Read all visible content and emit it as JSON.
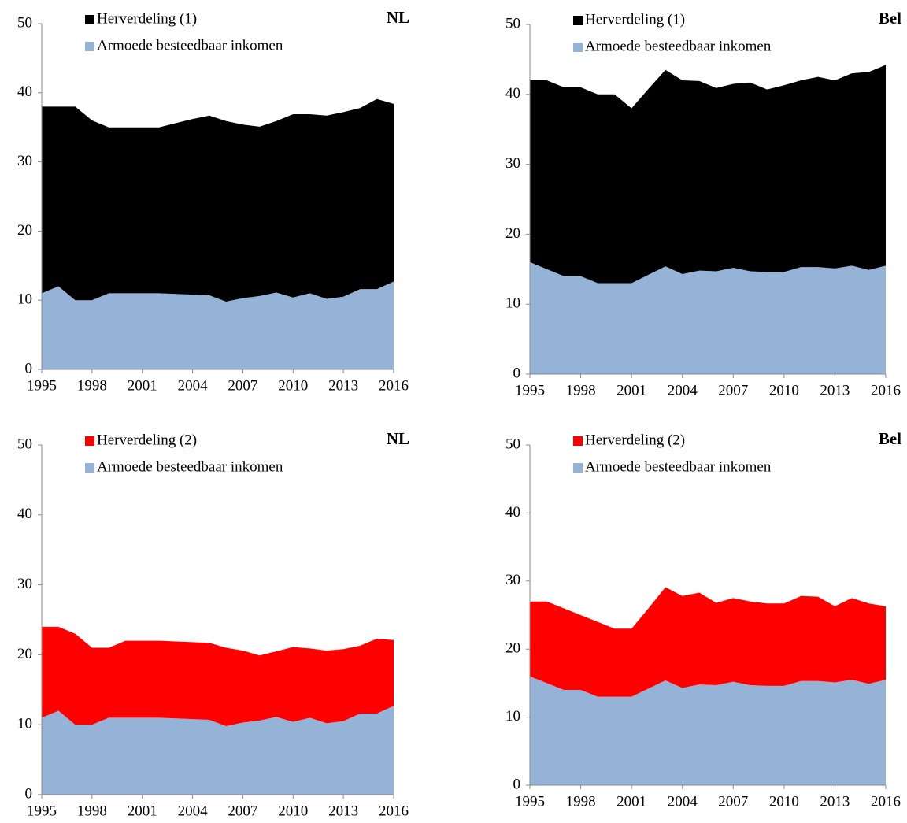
{
  "chart_data": [
    {
      "type": "area",
      "stacked": true,
      "title": "NL",
      "x": [
        1995,
        1996,
        1997,
        1998,
        1999,
        2000,
        2001,
        2002,
        2003,
        2004,
        2005,
        2006,
        2007,
        2008,
        2009,
        2010,
        2011,
        2012,
        2013,
        2014,
        2015,
        2016
      ],
      "series": [
        {
          "name": "Armoede besteedbaar inkomen",
          "color": "#95b3d7",
          "values": [
            11,
            12,
            10,
            10,
            11,
            11,
            11,
            11,
            10.9,
            10.8,
            10.7,
            9.8,
            10.3,
            10.6,
            11.1,
            10.4,
            11,
            10.2,
            10.5,
            11.6,
            11.6,
            12.7
          ]
        },
        {
          "name": "Herverdeling (1)",
          "color": "#000000",
          "values": [
            27,
            26,
            28,
            26,
            24,
            24,
            24,
            24,
            24.7,
            25.4,
            26,
            26.1,
            25.1,
            24.5,
            24.8,
            26.5,
            25.9,
            26.5,
            26.7,
            26.2,
            27.5,
            25.7
          ]
        }
      ],
      "xlim": [
        1995,
        2016
      ],
      "xticks": [
        1995,
        1998,
        2001,
        2004,
        2007,
        2010,
        2013,
        2016
      ],
      "ylim": [
        0,
        50
      ],
      "yticks": [
        0,
        10,
        20,
        30,
        40,
        50
      ]
    },
    {
      "type": "area",
      "stacked": true,
      "title": "Bel",
      "x": [
        1995,
        1996,
        1997,
        1998,
        1999,
        2000,
        2001,
        2002,
        2003,
        2004,
        2005,
        2006,
        2007,
        2008,
        2009,
        2010,
        2011,
        2012,
        2013,
        2014,
        2015,
        2016
      ],
      "series": [
        {
          "name": "Armoede besteedbaar inkomen",
          "color": "#95b3d7",
          "values": [
            16,
            15,
            14,
            14,
            13,
            13,
            13,
            14.2,
            15.4,
            14.3,
            14.8,
            14.7,
            15.2,
            14.7,
            14.6,
            14.6,
            15.3,
            15.3,
            15.1,
            15.5,
            14.9,
            15.5
          ]
        },
        {
          "name": "Herverdeling (1)",
          "color": "#000000",
          "values": [
            26,
            27,
            27,
            27,
            27,
            27,
            25,
            26.6,
            28.1,
            27.7,
            27.1,
            26.2,
            26.3,
            27,
            26.1,
            26.7,
            26.7,
            27.2,
            26.9,
            27.5,
            28.3,
            28.7
          ]
        }
      ],
      "xlim": [
        1995,
        2016
      ],
      "xticks": [
        1995,
        1998,
        2001,
        2004,
        2007,
        2010,
        2013,
        2016
      ],
      "ylim": [
        0,
        50
      ],
      "yticks": [
        0,
        10,
        20,
        30,
        40,
        50
      ]
    },
    {
      "type": "area",
      "stacked": true,
      "title": "NL",
      "x": [
        1995,
        1996,
        1997,
        1998,
        1999,
        2000,
        2001,
        2002,
        2003,
        2004,
        2005,
        2006,
        2007,
        2008,
        2009,
        2010,
        2011,
        2012,
        2013,
        2014,
        2015,
        2016
      ],
      "series": [
        {
          "name": "Armoede besteedbaar inkomen",
          "color": "#95b3d7",
          "values": [
            11,
            12,
            10,
            10,
            11,
            11,
            11,
            11,
            10.9,
            10.8,
            10.7,
            9.8,
            10.3,
            10.6,
            11.1,
            10.4,
            11,
            10.2,
            10.5,
            11.6,
            11.6,
            12.7
          ]
        },
        {
          "name": "Herverdeling (2)",
          "color": "#ff0000",
          "values": [
            13,
            12,
            13,
            11,
            10,
            11,
            11,
            11,
            11,
            11,
            11,
            11.2,
            10.3,
            9.3,
            9.4,
            10.7,
            9.9,
            10.4,
            10.3,
            9.7,
            10.7,
            9.4
          ]
        }
      ],
      "xlim": [
        1995,
        2016
      ],
      "xticks": [
        1995,
        1998,
        2001,
        2004,
        2007,
        2010,
        2013,
        2016
      ],
      "ylim": [
        0,
        50
      ],
      "yticks": [
        0,
        10,
        20,
        30,
        40,
        50
      ]
    },
    {
      "type": "area",
      "stacked": true,
      "title": "Bel",
      "x": [
        1995,
        1996,
        1997,
        1998,
        1999,
        2000,
        2001,
        2002,
        2003,
        2004,
        2005,
        2006,
        2007,
        2008,
        2009,
        2010,
        2011,
        2012,
        2013,
        2014,
        2015,
        2016
      ],
      "series": [
        {
          "name": "Armoede besteedbaar inkomen",
          "color": "#95b3d7",
          "values": [
            16,
            15,
            14,
            14,
            13,
            13,
            13,
            14.2,
            15.4,
            14.3,
            14.8,
            14.7,
            15.2,
            14.7,
            14.6,
            14.6,
            15.3,
            15.3,
            15.1,
            15.5,
            14.9,
            15.5
          ]
        },
        {
          "name": "Herverdeling (2)",
          "color": "#ff0000",
          "values": [
            11,
            12,
            12,
            11,
            11,
            10,
            10,
            11.8,
            13.7,
            13.5,
            13.5,
            12.1,
            12.3,
            12.3,
            12.1,
            12.1,
            12.5,
            12.4,
            11.2,
            12,
            11.8,
            10.8
          ]
        }
      ],
      "xlim": [
        1995,
        2016
      ],
      "xticks": [
        1995,
        1998,
        2001,
        2004,
        2007,
        2010,
        2013,
        2016
      ],
      "ylim": [
        0,
        50
      ],
      "yticks": [
        0,
        10,
        20,
        30,
        40,
        50
      ]
    }
  ]
}
